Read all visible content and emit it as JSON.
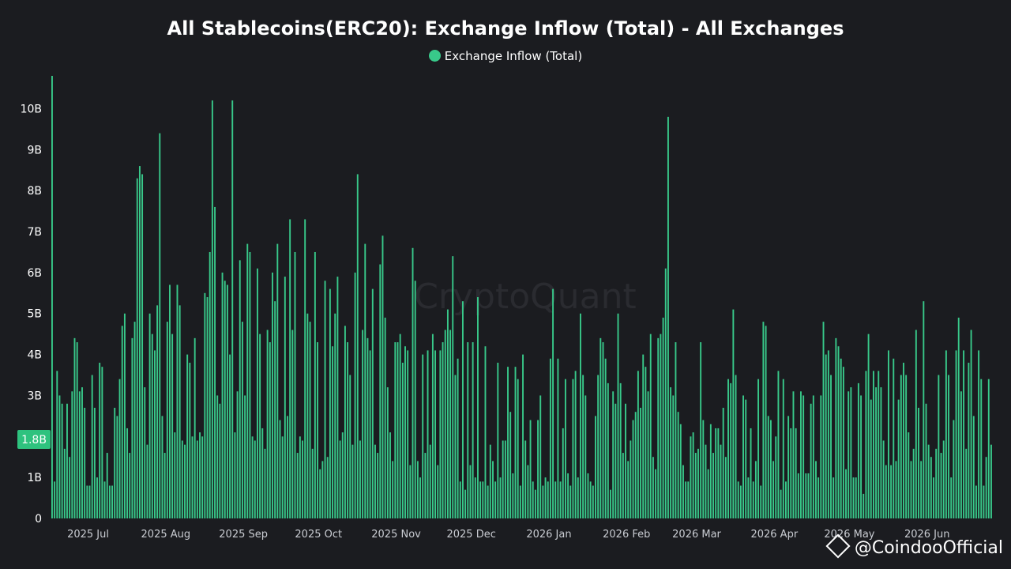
{
  "colors": {
    "background": "#1b1c20",
    "bar": "#38c98a",
    "badge": "#2ec27e"
  },
  "watermark": "CryptoQuant",
  "credit": "@CoindooOfficial",
  "chart_data": {
    "type": "bar",
    "title": "All Stablecoins(ERC20): Exchange Inflow (Total) - All Exchanges",
    "legend": [
      "Exchange Inflow (Total)"
    ],
    "legend_position": "top-center",
    "grid": false,
    "ylim": [
      0,
      10800000000
    ],
    "y_ticks": [
      {
        "value": 0,
        "label": "0"
      },
      {
        "value": 1000000000,
        "label": "1B"
      },
      {
        "value": 3000000000,
        "label": "3B"
      },
      {
        "value": 4000000000,
        "label": "4B"
      },
      {
        "value": 5000000000,
        "label": "5B"
      },
      {
        "value": 6000000000,
        "label": "6B"
      },
      {
        "value": 7000000000,
        "label": "7B"
      },
      {
        "value": 8000000000,
        "label": "8B"
      },
      {
        "value": 9000000000,
        "label": "9B"
      },
      {
        "value": 10000000000,
        "label": "10B"
      }
    ],
    "latest_value_label": "1.8B",
    "latest_value": 1800000000,
    "x_start": "2025-06-16",
    "x_ticks": [
      {
        "date": "2025-07-01",
        "label": "2025 Jul"
      },
      {
        "date": "2025-08-01",
        "label": "2025 Aug"
      },
      {
        "date": "2025-09-01",
        "label": "2025 Sep"
      },
      {
        "date": "2025-10-01",
        "label": "2025 Oct"
      },
      {
        "date": "2025-11-01",
        "label": "2025 Nov"
      },
      {
        "date": "2025-12-01",
        "label": "2025 Dec"
      },
      {
        "date": "2026-01-01",
        "label": "2026 Jan"
      },
      {
        "date": "2026-02-01",
        "label": "2026 Feb"
      },
      {
        "date": "2026-03-01",
        "label": "2026 Mar"
      },
      {
        "date": "2026-04-01",
        "label": "2026 Apr"
      },
      {
        "date": "2026-05-01",
        "label": "2026 May"
      },
      {
        "date": "2026-06-01",
        "label": "2026 Jun"
      }
    ],
    "series": [
      {
        "name": "Exchange Inflow (Total)",
        "unit": "billions USD",
        "values": [
          10.8,
          0.9,
          3.6,
          3.0,
          2.8,
          1.7,
          2.8,
          1.5,
          3.1,
          4.4,
          4.3,
          3.1,
          3.2,
          2.7,
          0.8,
          0.8,
          3.5,
          2.7,
          1.0,
          3.8,
          3.7,
          0.9,
          1.6,
          0.8,
          0.8,
          2.7,
          2.5,
          3.4,
          4.7,
          5.0,
          2.2,
          1.6,
          4.4,
          4.8,
          8.3,
          8.6,
          8.4,
          3.2,
          1.8,
          5.0,
          4.5,
          4.1,
          5.2,
          9.4,
          2.5,
          1.6,
          4.8,
          5.7,
          4.5,
          2.1,
          5.7,
          5.2,
          1.9,
          1.8,
          4.0,
          3.8,
          2.0,
          4.4,
          1.9,
          2.1,
          2.0,
          5.5,
          5.4,
          6.5,
          10.2,
          7.6,
          3.0,
          2.8,
          6.0,
          5.8,
          5.7,
          4.0,
          10.2,
          2.1,
          3.1,
          6.3,
          4.8,
          3.0,
          6.7,
          6.5,
          2.0,
          1.9,
          6.1,
          4.5,
          2.2,
          1.7,
          4.6,
          4.3,
          6.0,
          5.3,
          6.7,
          2.4,
          2.0,
          5.9,
          2.5,
          7.3,
          4.6,
          6.5,
          1.6,
          2.0,
          1.9,
          7.3,
          5.0,
          4.8,
          1.7,
          6.5,
          4.3,
          1.2,
          1.4,
          5.8,
          1.5,
          5.6,
          4.2,
          5.0,
          5.9,
          1.9,
          2.1,
          4.7,
          4.3,
          3.5,
          1.8,
          6.0,
          8.4,
          1.9,
          4.6,
          6.7,
          4.4,
          4.1,
          5.6,
          1.8,
          1.6,
          6.2,
          6.9,
          4.9,
          3.2,
          2.1,
          1.4,
          4.3,
          4.3,
          4.5,
          3.8,
          4.2,
          4.1,
          1.3,
          6.6,
          5.8,
          1.4,
          1.0,
          4.0,
          1.6,
          4.1,
          1.8,
          4.5,
          4.1,
          1.3,
          4.1,
          4.3,
          4.6,
          5.1,
          4.6,
          6.4,
          3.5,
          3.9,
          0.9,
          5.3,
          0.7,
          4.3,
          1.3,
          4.3,
          1.0,
          5.4,
          0.9,
          0.9,
          4.2,
          0.8,
          1.8,
          1.4,
          0.9,
          3.8,
          1.0,
          1.9,
          1.9,
          3.7,
          2.6,
          1.1,
          3.7,
          3.4,
          0.8,
          4.0,
          1.9,
          1.3,
          2.4,
          0.9,
          0.7,
          2.4,
          3.0,
          0.8,
          1.0,
          0.9,
          3.9,
          5.6,
          0.9,
          3.9,
          0.9,
          2.2,
          3.4,
          1.1,
          0.8,
          3.4,
          3.6,
          1.0,
          5.0,
          3.5,
          3.0,
          1.1,
          0.9,
          0.8,
          2.5,
          3.5,
          4.4,
          4.3,
          3.9,
          3.3,
          0.7,
          3.1,
          2.8,
          5.0,
          3.3,
          1.6,
          2.8,
          1.4,
          1.9,
          2.4,
          2.6,
          3.6,
          2.7,
          4.0,
          3.7,
          3.1,
          4.5,
          1.5,
          1.2,
          4.4,
          4.5,
          4.9,
          6.1,
          9.8,
          3.2,
          3.0,
          4.3,
          2.6,
          2.3,
          1.3,
          0.9,
          0.9,
          2.0,
          2.1,
          1.6,
          1.7,
          4.3,
          2.4,
          1.8,
          1.2,
          2.3,
          1.6,
          2.2,
          2.2,
          1.8,
          2.7,
          1.5,
          3.4,
          3.3,
          5.1,
          3.5,
          0.9,
          0.8,
          3.0,
          2.9,
          1.0,
          2.2,
          0.9,
          1.4,
          3.4,
          0.8,
          4.8,
          4.7,
          2.5,
          2.4,
          1.4,
          2.0,
          3.6,
          0.7,
          3.4,
          0.9,
          2.5,
          2.2,
          3.1,
          2.2,
          1.1,
          3.1,
          3.0,
          1.1,
          1.1,
          2.8,
          3.0,
          1.4,
          1.0,
          3.0,
          4.8,
          4.0,
          4.1,
          3.5,
          1.0,
          4.4,
          4.2,
          3.9,
          3.7,
          1.2,
          3.1,
          3.2,
          1.0,
          1.0,
          3.3,
          3.0,
          0.6,
          3.6,
          4.5,
          2.9,
          3.6,
          3.2,
          3.6,
          3.2,
          1.9,
          1.3,
          4.1,
          1.3,
          3.9,
          1.4,
          2.9,
          3.5,
          3.8,
          3.5,
          2.1,
          1.4,
          1.7,
          4.6,
          2.7,
          1.4,
          5.3,
          2.8,
          1.8,
          1.5,
          1.0,
          1.7,
          3.5,
          1.6,
          1.9,
          4.1,
          3.5,
          1.0,
          2.4,
          4.1,
          4.9,
          3.1,
          4.1,
          1.7,
          3.8,
          4.6,
          2.5,
          0.8,
          4.1,
          3.4,
          0.8,
          1.5,
          3.4,
          1.8
        ]
      }
    ]
  }
}
